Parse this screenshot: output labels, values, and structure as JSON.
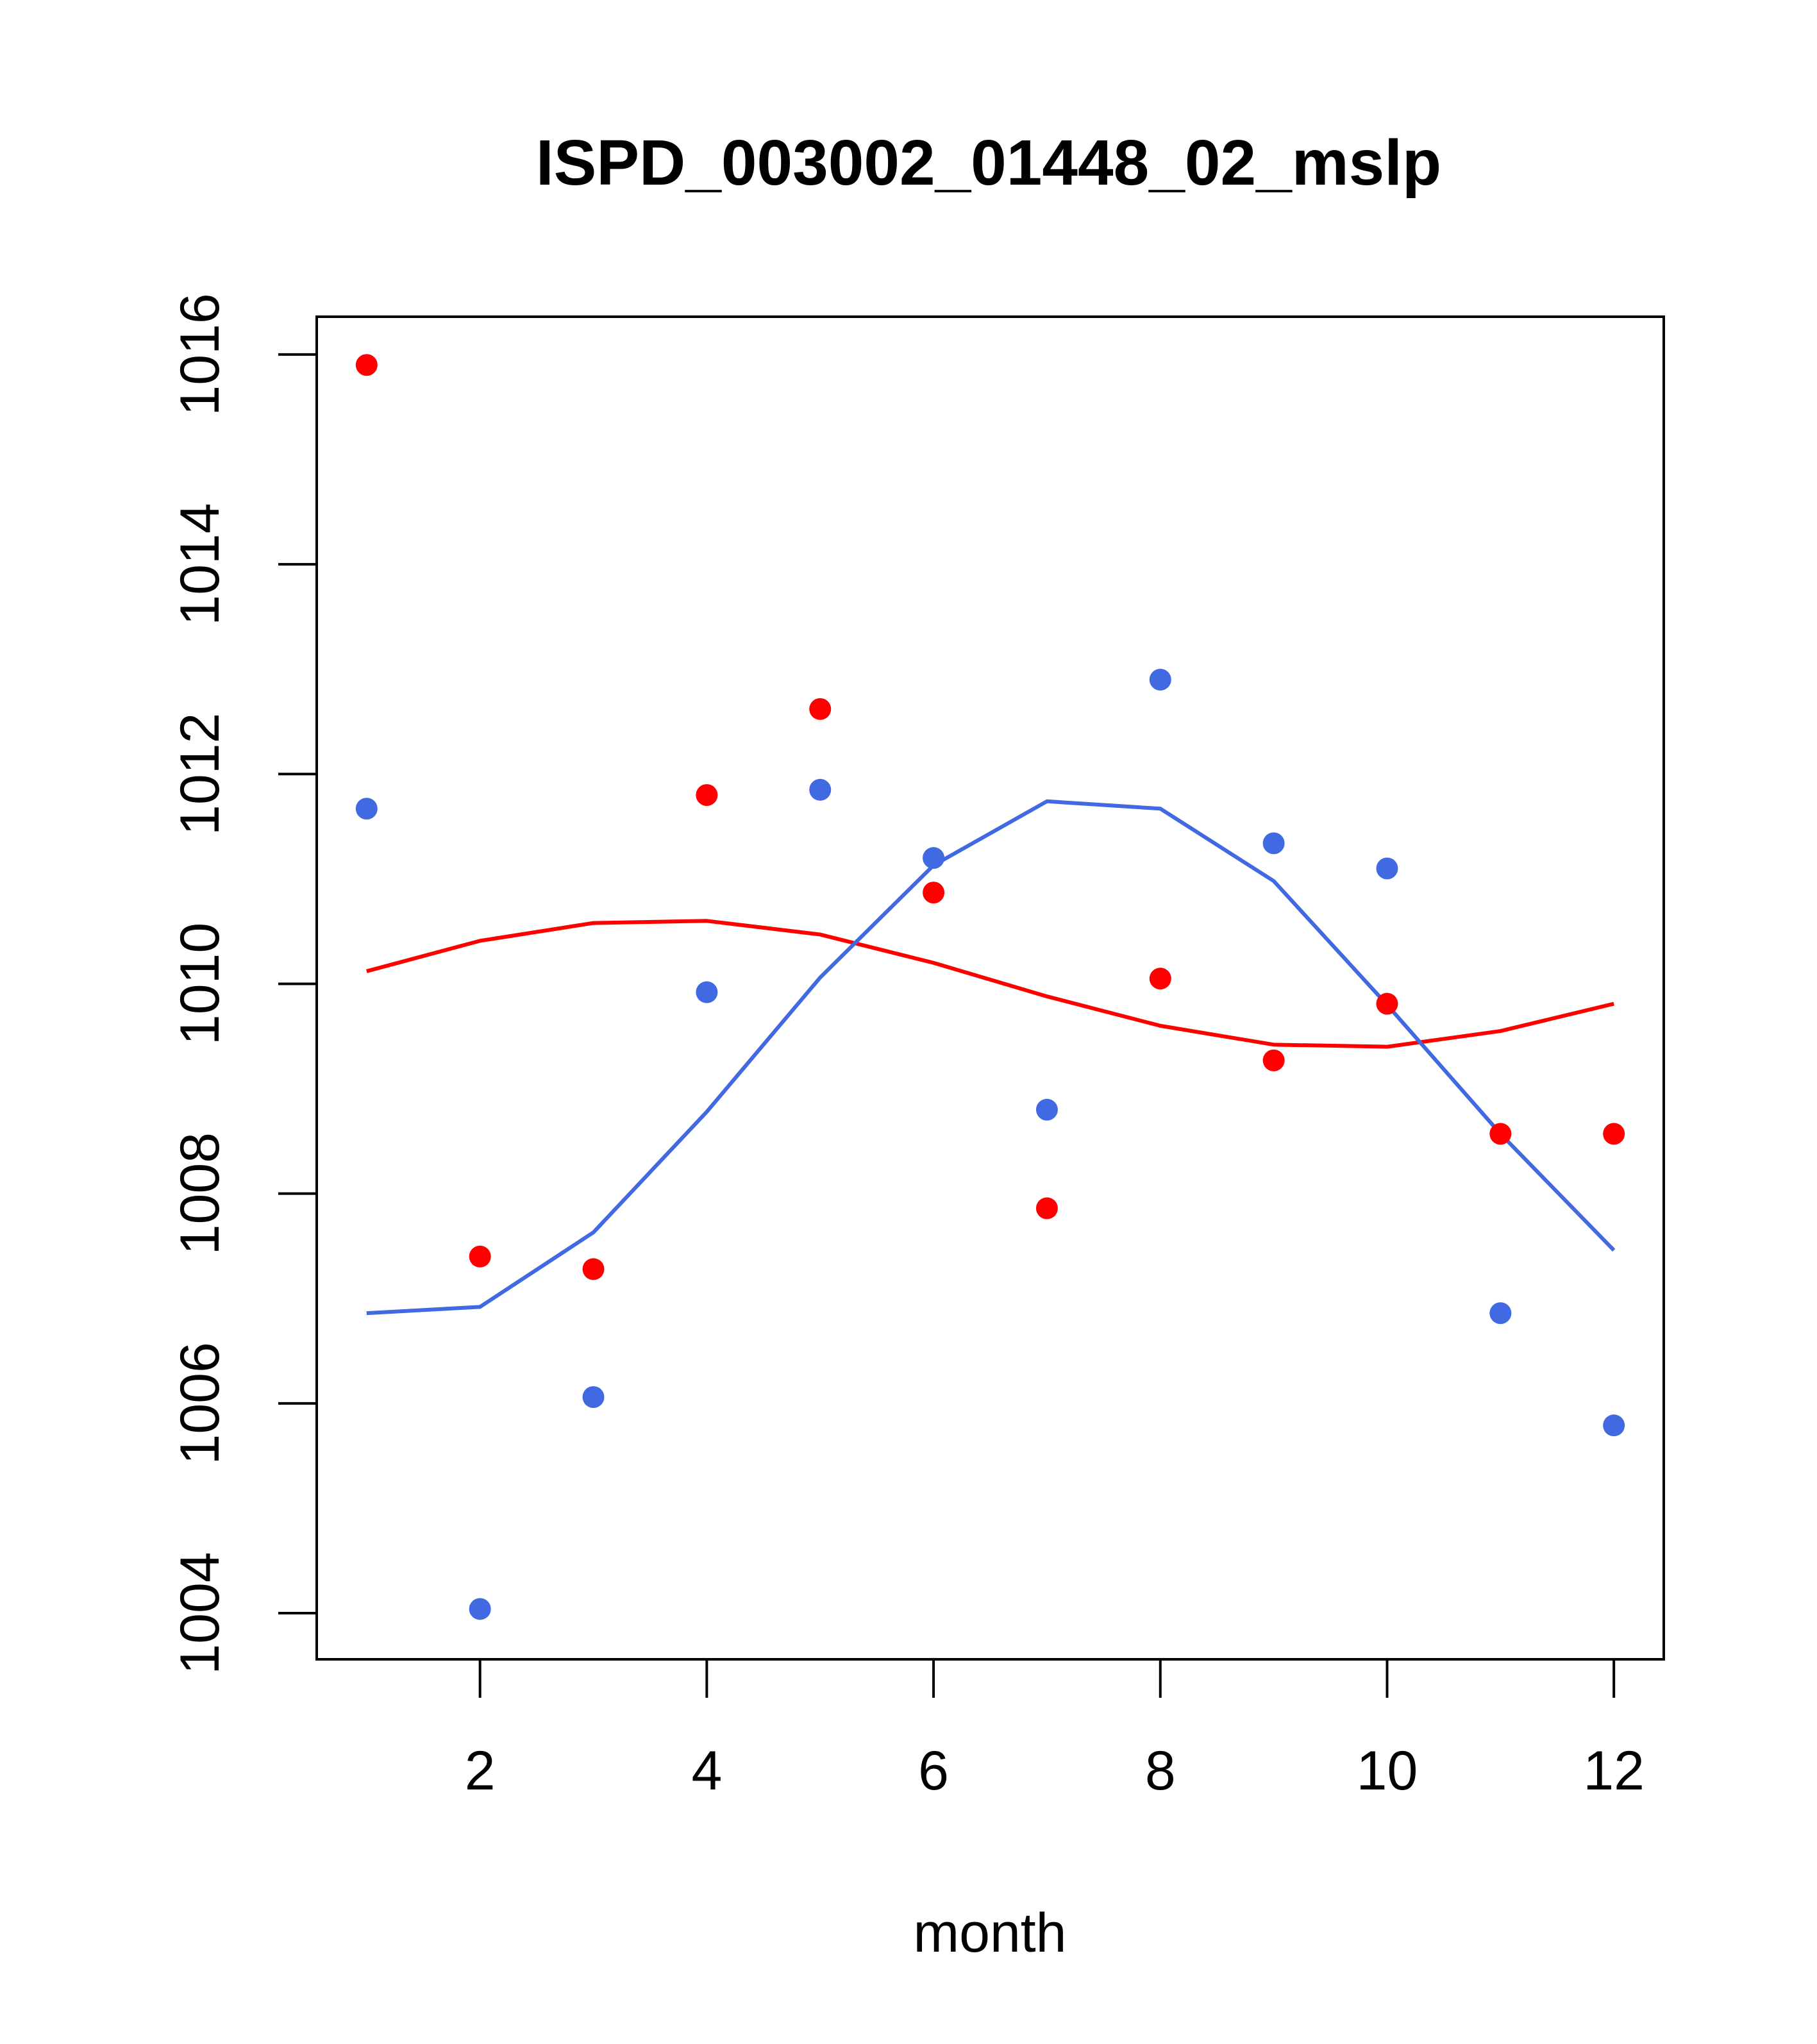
{
  "chart_data": {
    "type": "scatter",
    "title": "ISPD_003002_01448_02_mslp",
    "xlabel": "month",
    "ylabel": "",
    "xlim": [
      0.56,
      12.44
    ],
    "ylim": [
      1003.56,
      1016.36
    ],
    "xticks": [
      2,
      4,
      6,
      8,
      10,
      12
    ],
    "yticks": [
      1004,
      1006,
      1008,
      1010,
      1012,
      1014,
      1016
    ],
    "xtick_labels": [
      "2",
      "4",
      "6",
      "8",
      "10",
      "12"
    ],
    "ytick_labels": [
      "1004",
      "1006",
      "1008",
      "1010",
      "1012",
      "1014",
      "1016"
    ],
    "grid": false,
    "x": [
      1,
      2,
      3,
      4,
      5,
      6,
      7,
      8,
      9,
      10,
      11,
      12
    ],
    "series": [
      {
        "name": "red points",
        "kind": "points",
        "color": "#ff0000",
        "values": [
          1015.9,
          1007.4,
          1007.28,
          1011.8,
          1012.62,
          1010.87,
          1007.86,
          1010.05,
          1009.27,
          1009.81,
          1008.57,
          1008.57
        ]
      },
      {
        "name": "red smooth line",
        "kind": "line",
        "color": "#ff0000",
        "values": [
          1010.12,
          1010.41,
          1010.58,
          1010.6,
          1010.47,
          1010.2,
          1009.88,
          1009.6,
          1009.42,
          1009.4,
          1009.55,
          1009.81
        ]
      },
      {
        "name": "blue points",
        "kind": "points",
        "color": "#4169e1",
        "values": [
          1011.67,
          1004.04,
          1006.06,
          1009.92,
          1011.85,
          1011.2,
          1008.8,
          1012.9,
          1011.34,
          1011.1,
          1006.86,
          1005.79
        ]
      },
      {
        "name": "blue smooth line",
        "kind": "line",
        "color": "#4169e1",
        "values": [
          1006.86,
          1006.92,
          1007.63,
          1008.78,
          1010.06,
          1011.13,
          1011.74,
          1011.67,
          1010.98,
          1009.8,
          1008.57,
          1007.46
        ]
      }
    ]
  }
}
